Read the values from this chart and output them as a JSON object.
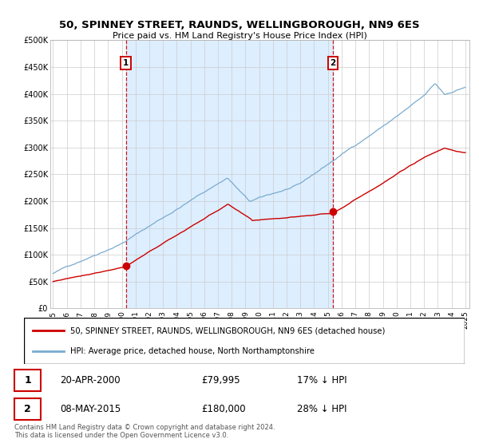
{
  "title": "50, SPINNEY STREET, RAUNDS, WELLINGBOROUGH, NN9 6ES",
  "subtitle": "Price paid vs. HM Land Registry's House Price Index (HPI)",
  "legend_line1": "50, SPINNEY STREET, RAUNDS, WELLINGBOROUGH, NN9 6ES (detached house)",
  "legend_line2": "HPI: Average price, detached house, North Northamptonshire",
  "annotation1": {
    "label": "1",
    "date": "20-APR-2000",
    "price": "£79,995",
    "note": "17% ↓ HPI",
    "x_year": 2000.3,
    "y_val": 79995
  },
  "annotation2": {
    "label": "2",
    "date": "08-MAY-2015",
    "price": "£180,000",
    "note": "28% ↓ HPI",
    "x_year": 2015.37,
    "y_val": 180000
  },
  "copyright_text": "Contains HM Land Registry data © Crown copyright and database right 2024.\nThis data is licensed under the Open Government Licence v3.0.",
  "red_color": "#cc0000",
  "blue_color": "#7aabcf",
  "shade_color": "#ddeeff",
  "ylim": [
    0,
    500000
  ],
  "ytick_values": [
    0,
    50000,
    100000,
    150000,
    200000,
    250000,
    300000,
    350000,
    400000,
    450000,
    500000
  ],
  "ytick_labels": [
    "£0",
    "£50K",
    "£100K",
    "£150K",
    "£200K",
    "£250K",
    "£300K",
    "£350K",
    "£400K",
    "£450K",
    "£500K"
  ],
  "xlim_start": 1994.8,
  "xlim_end": 2025.3
}
